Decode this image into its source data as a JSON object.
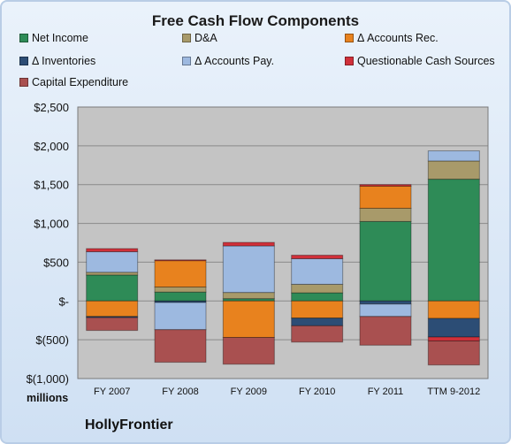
{
  "chart_data": {
    "type": "bar",
    "stacked": true,
    "title": "Free Cash Flow Components",
    "ylabel": "millions",
    "ylim": [
      -1000,
      2500
    ],
    "yticks": [
      2500,
      2000,
      1500,
      1000,
      500,
      0,
      -500,
      -1000
    ],
    "ytick_labels": [
      "$2,500",
      "$2,000",
      "$1,500",
      "$1,000",
      "$500",
      "$-",
      "$(500)",
      "$(1,000)"
    ],
    "grid": true,
    "legend_position": "top",
    "categories": [
      "FY 2007",
      "FY 2008",
      "FY 2009",
      "FY 2010",
      "FY 2011",
      "TTM 9-2012"
    ],
    "series": [
      {
        "name": "Net Income",
        "color": "#2e8b57",
        "values": [
          335,
          115,
          30,
          105,
          1025,
          1570
        ]
      },
      {
        "name": "D&A",
        "color": "#a89a6a",
        "values": [
          35,
          65,
          80,
          110,
          170,
          235
        ]
      },
      {
        "name": "Δ Accounts Rec.",
        "color": "#e8821e",
        "values": [
          -200,
          340,
          -470,
          -220,
          285,
          -225
        ]
      },
      {
        "name": "Δ Inventories",
        "color": "#2c4d75",
        "values": [
          -15,
          -20,
          0,
          -100,
          -40,
          -240
        ]
      },
      {
        "name": "Δ Accounts Pay.",
        "color": "#9db9e0",
        "values": [
          265,
          -350,
          600,
          330,
          -160,
          130
        ]
      },
      {
        "name": "Questionable Cash Sources",
        "color": "#d0303a",
        "values": [
          40,
          10,
          45,
          45,
          20,
          -50
        ]
      },
      {
        "name": "Capital Expenditure",
        "color": "#a95050",
        "values": [
          -165,
          -420,
          -345,
          -210,
          -370,
          -310
        ]
      }
    ]
  },
  "footer": {
    "units_label": "millions",
    "company": "HollyFrontier"
  }
}
